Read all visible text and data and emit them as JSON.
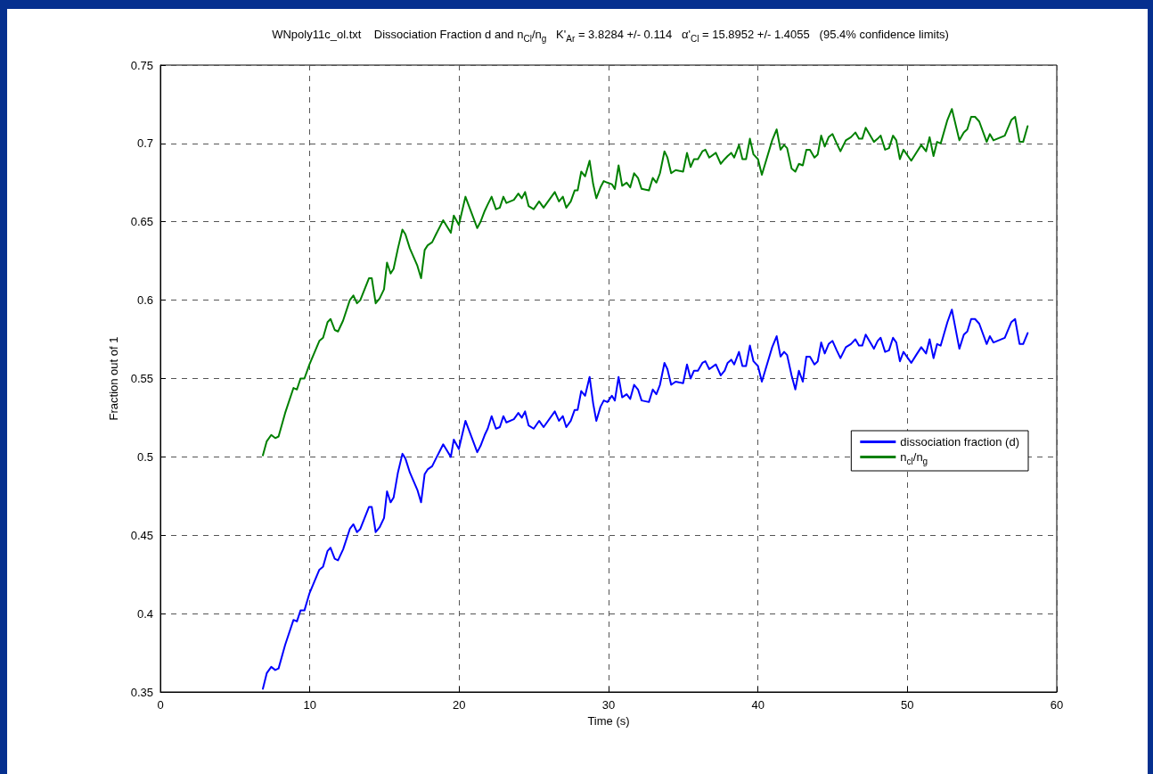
{
  "chart_data": {
    "type": "line",
    "title": "WNpoly11c_ol.txt    Dissociation Fraction d and n$_{Cl}$/n$_{g}$   K'$_{Ar}$ = 3.8284 +/- 0.114   α'$_{Cl}$ = 15.8952 +/- 1.4055   (95.4% confidence limits)",
    "xlabel": "Time (s)",
    "ylabel": "Fraction out of 1",
    "x": [
      6.86,
      7.12,
      7.42,
      7.69,
      7.91,
      8.35,
      8.91,
      9.14,
      9.38,
      9.64,
      9.98,
      10.64,
      10.89,
      11.19,
      11.39,
      11.67,
      11.89,
      12.23,
      12.68,
      12.92,
      13.16,
      13.38,
      13.96,
      14.15,
      14.41,
      14.67,
      14.97,
      15.17,
      15.41,
      15.61,
      15.9,
      16.2,
      16.4,
      16.7,
      17.2,
      17.45,
      17.69,
      17.89,
      18.19,
      18.45,
      18.93,
      19.44,
      19.64,
      19.98,
      20.42,
      21.21,
      21.43,
      21.71,
      21.91,
      22.17,
      22.46,
      22.72,
      22.96,
      23.16,
      23.66,
      23.96,
      24.19,
      24.41,
      24.65,
      24.99,
      25.35,
      25.65,
      26.4,
      26.68,
      26.94,
      27.17,
      27.47,
      27.73,
      27.93,
      28.17,
      28.43,
      28.73,
      28.97,
      29.18,
      29.46,
      29.68,
      29.92,
      30.22,
      30.42,
      30.67,
      30.91,
      31.21,
      31.45,
      31.71,
      31.97,
      32.21,
      32.7,
      32.96,
      33.2,
      33.44,
      33.74,
      33.94,
      34.19,
      34.49,
      34.99,
      35.25,
      35.49,
      35.72,
      35.98,
      36.28,
      36.48,
      36.74,
      37.18,
      37.51,
      37.77,
      37.97,
      38.21,
      38.41,
      38.73,
      38.96,
      39.2,
      39.46,
      39.7,
      40.0,
      40.26,
      40.51,
      40.95,
      41.25,
      41.51,
      41.75,
      41.95,
      42.25,
      42.5,
      42.74,
      43.0,
      43.24,
      43.48,
      43.78,
      44.0,
      44.23,
      44.47,
      44.73,
      44.99,
      45.27,
      45.52,
      45.88,
      46.22,
      46.52,
      46.76,
      46.98,
      47.21,
      47.76,
      48.01,
      48.21,
      48.51,
      48.77,
      49.04,
      49.26,
      49.5,
      49.74,
      50.26,
      50.59,
      50.93,
      51.25,
      51.49,
      51.75,
      51.99,
      52.23,
      52.68,
      52.98,
      53.48,
      53.78,
      54.01,
      54.27,
      54.53,
      54.81,
      55.31,
      55.52,
      55.76,
      56.52,
      56.96,
      57.21,
      57.51,
      57.75,
      58.05
    ],
    "series": [
      {
        "name": "dissociation fraction (d)",
        "color": "#0000ff",
        "values": [
          0.352,
          0.362,
          0.366,
          0.364,
          0.365,
          0.38,
          0.396,
          0.395,
          0.402,
          0.402,
          0.413,
          0.428,
          0.43,
          0.44,
          0.442,
          0.435,
          0.434,
          0.441,
          0.454,
          0.457,
          0.452,
          0.454,
          0.468,
          0.468,
          0.452,
          0.455,
          0.461,
          0.478,
          0.471,
          0.474,
          0.49,
          0.502,
          0.499,
          0.49,
          0.479,
          0.471,
          0.489,
          0.492,
          0.494,
          0.499,
          0.508,
          0.5,
          0.511,
          0.505,
          0.523,
          0.503,
          0.507,
          0.514,
          0.518,
          0.526,
          0.518,
          0.519,
          0.526,
          0.522,
          0.524,
          0.528,
          0.525,
          0.529,
          0.52,
          0.518,
          0.523,
          0.519,
          0.529,
          0.523,
          0.526,
          0.519,
          0.523,
          0.53,
          0.53,
          0.542,
          0.539,
          0.551,
          0.534,
          0.523,
          0.532,
          0.536,
          0.535,
          0.539,
          0.536,
          0.551,
          0.538,
          0.54,
          0.537,
          0.546,
          0.543,
          0.536,
          0.535,
          0.543,
          0.54,
          0.546,
          0.56,
          0.556,
          0.546,
          0.548,
          0.547,
          0.559,
          0.55,
          0.555,
          0.555,
          0.56,
          0.561,
          0.556,
          0.559,
          0.552,
          0.555,
          0.56,
          0.562,
          0.559,
          0.567,
          0.558,
          0.558,
          0.571,
          0.561,
          0.558,
          0.548,
          0.556,
          0.57,
          0.577,
          0.564,
          0.567,
          0.565,
          0.552,
          0.543,
          0.555,
          0.548,
          0.564,
          0.564,
          0.559,
          0.561,
          0.573,
          0.566,
          0.572,
          0.574,
          0.568,
          0.563,
          0.57,
          0.572,
          0.575,
          0.571,
          0.571,
          0.578,
          0.569,
          0.574,
          0.576,
          0.567,
          0.568,
          0.576,
          0.573,
          0.561,
          0.567,
          0.56,
          0.565,
          0.57,
          0.566,
          0.575,
          0.563,
          0.572,
          0.571,
          0.586,
          0.594,
          0.569,
          0.578,
          0.58,
          0.588,
          0.588,
          0.585,
          0.572,
          0.577,
          0.573,
          0.576,
          0.586,
          0.588,
          0.572,
          0.572,
          0.579
        ]
      },
      {
        "name": "n$_{cl}$/n$_{g}$",
        "color": "#008000",
        "values": [
          0.501,
          0.51,
          0.514,
          0.512,
          0.513,
          0.528,
          0.544,
          0.543,
          0.55,
          0.55,
          0.559,
          0.574,
          0.576,
          0.586,
          0.588,
          0.581,
          0.58,
          0.587,
          0.6,
          0.603,
          0.598,
          0.6,
          0.614,
          0.614,
          0.598,
          0.601,
          0.607,
          0.624,
          0.617,
          0.62,
          0.633,
          0.645,
          0.642,
          0.633,
          0.622,
          0.614,
          0.632,
          0.635,
          0.637,
          0.642,
          0.651,
          0.643,
          0.654,
          0.648,
          0.666,
          0.646,
          0.65,
          0.657,
          0.661,
          0.666,
          0.658,
          0.659,
          0.666,
          0.662,
          0.664,
          0.668,
          0.665,
          0.669,
          0.66,
          0.658,
          0.663,
          0.659,
          0.669,
          0.663,
          0.666,
          0.659,
          0.663,
          0.67,
          0.67,
          0.682,
          0.679,
          0.689,
          0.674,
          0.665,
          0.672,
          0.676,
          0.675,
          0.674,
          0.671,
          0.686,
          0.673,
          0.675,
          0.672,
          0.681,
          0.678,
          0.671,
          0.67,
          0.678,
          0.675,
          0.681,
          0.695,
          0.691,
          0.681,
          0.683,
          0.682,
          0.694,
          0.685,
          0.69,
          0.69,
          0.695,
          0.696,
          0.691,
          0.694,
          0.687,
          0.69,
          0.692,
          0.694,
          0.691,
          0.699,
          0.69,
          0.69,
          0.703,
          0.693,
          0.69,
          0.68,
          0.688,
          0.702,
          0.709,
          0.696,
          0.699,
          0.697,
          0.684,
          0.682,
          0.687,
          0.686,
          0.696,
          0.696,
          0.691,
          0.693,
          0.705,
          0.698,
          0.704,
          0.706,
          0.7,
          0.695,
          0.702,
          0.704,
          0.707,
          0.703,
          0.703,
          0.71,
          0.701,
          0.703,
          0.705,
          0.696,
          0.697,
          0.705,
          0.702,
          0.69,
          0.696,
          0.689,
          0.694,
          0.699,
          0.695,
          0.704,
          0.692,
          0.701,
          0.7,
          0.715,
          0.722,
          0.702,
          0.707,
          0.709,
          0.717,
          0.717,
          0.714,
          0.701,
          0.706,
          0.702,
          0.705,
          0.715,
          0.717,
          0.701,
          0.701,
          0.711
        ]
      }
    ],
    "xlim": [
      0,
      60
    ],
    "xticks": [
      0,
      10,
      20,
      30,
      40,
      50,
      60
    ],
    "ylim": [
      0.35,
      0.75
    ],
    "yticks": [
      0.35,
      0.4,
      0.45,
      0.5,
      0.55,
      0.6,
      0.65,
      0.7,
      0.75
    ],
    "grid": true,
    "legend": "right"
  }
}
